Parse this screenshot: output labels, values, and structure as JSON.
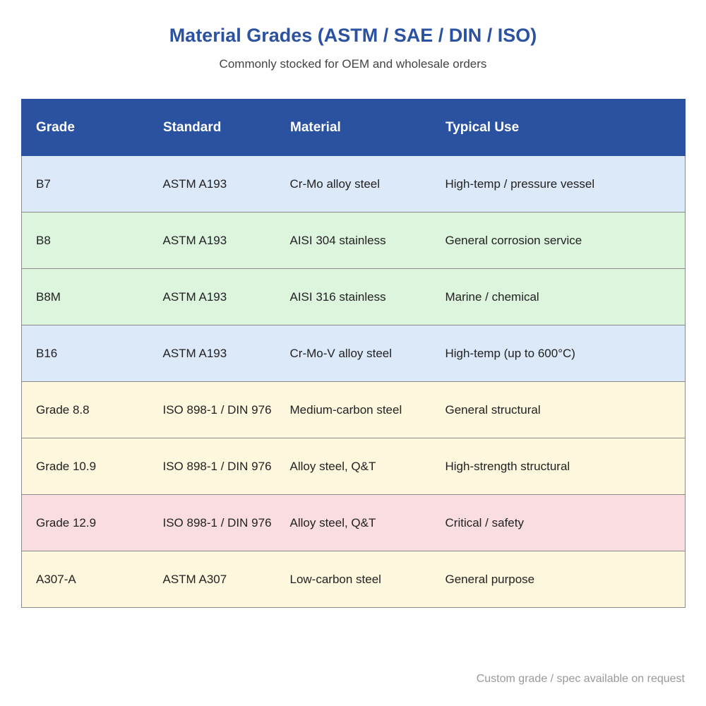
{
  "header": {
    "title": "Material Grades (ASTM / SAE / DIN / ISO)",
    "subtitle": "Commonly stocked for OEM and wholesale orders"
  },
  "table": {
    "columns": [
      "Grade",
      "Standard",
      "Material",
      "Typical Use"
    ],
    "rows": [
      {
        "cells": [
          "B7",
          "ASTM A193",
          "Cr-Mo alloy steel",
          "High-temp / pressure vessel"
        ],
        "color": "#dbe9f8"
      },
      {
        "cells": [
          "B8",
          "ASTM A193",
          "AISI 304 stainless",
          "General corrosion service"
        ],
        "color": "#ddf4dd"
      },
      {
        "cells": [
          "B8M",
          "ASTM A193",
          "AISI 316 stainless",
          "Marine / chemical"
        ],
        "color": "#ddf4dd"
      },
      {
        "cells": [
          "B16",
          "ASTM A193",
          "Cr-Mo-V alloy steel",
          "High-temp (up to 600°C)"
        ],
        "color": "#dbe9f8"
      },
      {
        "cells": [
          "Grade 8.8",
          "ISO 898-1 / DIN 976",
          "Medium-carbon steel",
          "General structural"
        ],
        "color": "#fdf7dd"
      },
      {
        "cells": [
          "Grade 10.9",
          "ISO 898-1 / DIN 976",
          "Alloy steel, Q&T",
          "High-strength structural"
        ],
        "color": "#fdf7dd"
      },
      {
        "cells": [
          "Grade 12.9",
          "ISO 898-1 / DIN 976",
          "Alloy steel, Q&T",
          "Critical / safety"
        ],
        "color": "#f9dde0"
      },
      {
        "cells": [
          "A307-A",
          "ASTM A307",
          "Low-carbon steel",
          "General purpose"
        ],
        "color": "#fdf7dd"
      }
    ]
  },
  "footer": {
    "note": "Custom grade / spec available on request"
  },
  "colors": {
    "accent": "#2a52a0"
  }
}
